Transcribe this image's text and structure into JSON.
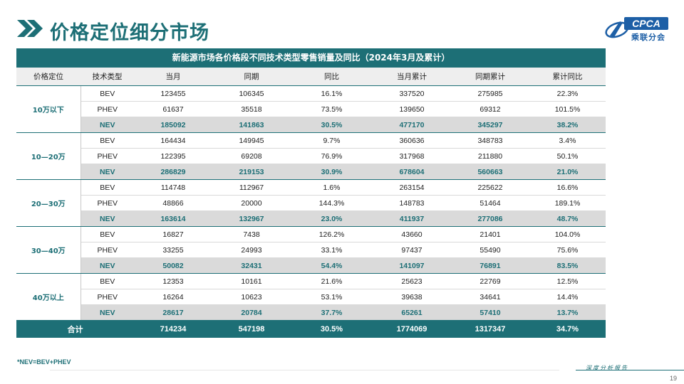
{
  "header": {
    "title": "价格定位细分市场",
    "logo_text": "CPCA",
    "logo_cn": "乘联分会"
  },
  "table": {
    "caption": "新能源市场各价格段不同技术类型零售销量及同比（2024年3月及累计）",
    "columns": [
      "价格定位",
      "技术类型",
      "当月",
      "同期",
      "同比",
      "当月累计",
      "同期累计",
      "累计同比"
    ],
    "groups": [
      {
        "label": "10万以下",
        "rows": [
          [
            "BEV",
            "123455",
            "106345",
            "16.1%",
            "337520",
            "275985",
            "22.3%"
          ],
          [
            "PHEV",
            "61637",
            "35518",
            "73.5%",
            "139650",
            "69312",
            "101.5%"
          ],
          [
            "NEV",
            "185092",
            "141863",
            "30.5%",
            "477170",
            "345297",
            "38.2%"
          ]
        ]
      },
      {
        "label": "10—20万",
        "rows": [
          [
            "BEV",
            "164434",
            "149945",
            "9.7%",
            "360636",
            "348783",
            "3.4%"
          ],
          [
            "PHEV",
            "122395",
            "69208",
            "76.9%",
            "317968",
            "211880",
            "50.1%"
          ],
          [
            "NEV",
            "286829",
            "219153",
            "30.9%",
            "678604",
            "560663",
            "21.0%"
          ]
        ]
      },
      {
        "label": "20—30万",
        "rows": [
          [
            "BEV",
            "114748",
            "112967",
            "1.6%",
            "263154",
            "225622",
            "16.6%"
          ],
          [
            "PHEV",
            "48866",
            "20000",
            "144.3%",
            "148783",
            "51464",
            "189.1%"
          ],
          [
            "NEV",
            "163614",
            "132967",
            "23.0%",
            "411937",
            "277086",
            "48.7%"
          ]
        ]
      },
      {
        "label": "30—40万",
        "rows": [
          [
            "BEV",
            "16827",
            "7438",
            "126.2%",
            "43660",
            "21401",
            "104.0%"
          ],
          [
            "PHEV",
            "33255",
            "24993",
            "33.1%",
            "97437",
            "55490",
            "75.6%"
          ],
          [
            "NEV",
            "50082",
            "32431",
            "54.4%",
            "141097",
            "76891",
            "83.5%"
          ]
        ]
      },
      {
        "label": "40万以上",
        "rows": [
          [
            "BEV",
            "12353",
            "10161",
            "21.6%",
            "25623",
            "22769",
            "12.5%"
          ],
          [
            "PHEV",
            "16264",
            "10623",
            "53.1%",
            "39638",
            "34641",
            "14.4%"
          ],
          [
            "NEV",
            "28617",
            "20784",
            "37.7%",
            "65261",
            "57410",
            "13.7%"
          ]
        ]
      }
    ],
    "total": [
      "合计",
      "714234",
      "547198",
      "30.5%",
      "1774069",
      "1317347",
      "34.7%"
    ]
  },
  "footer": {
    "note": "*NEV=BEV+PHEV",
    "report_label": "深度分析报告",
    "page_number": "19"
  },
  "colors": {
    "accent": "#1d6f76",
    "logo_blue": "#1d5fa6",
    "nev_row": "#dadada"
  }
}
